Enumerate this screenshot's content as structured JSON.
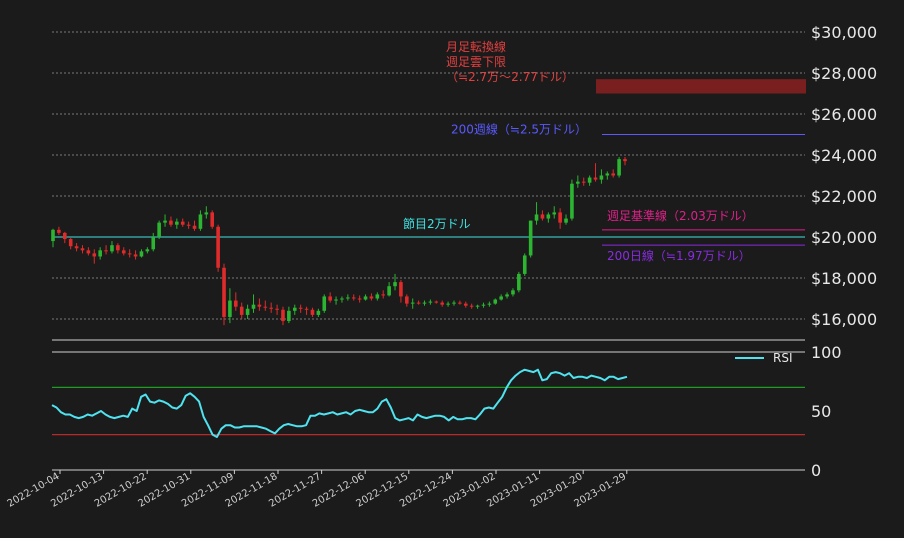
{
  "chart_data": [
    {
      "type": "candlestick",
      "title": "",
      "y_axis_side": "right",
      "ylim": [
        15000,
        30000
      ],
      "yticks": [
        16000,
        18000,
        20000,
        22000,
        24000,
        26000,
        28000,
        30000
      ],
      "ytick_labels": [
        "$16,000",
        "$18,000",
        "$20,000",
        "$22,000",
        "$24,000",
        "$26,000",
        "$28,000",
        "$30,000"
      ],
      "grid": "dotted horizontal",
      "up_color": "#2bb530",
      "down_color": "#e02b2b",
      "annotations": {
        "resistance_zone": {
          "lines": [
            "月足転換線",
            "週足雲下限",
            "（≒2.7万〜2.77ドル）"
          ],
          "from": 27000,
          "to": 27700,
          "color": "#7a1f1f",
          "text_color": "#e04040"
        },
        "ma200w": {
          "label": "200週線（≒2.5万ドル）",
          "value": 25000,
          "color": "#5a5aff"
        },
        "node": {
          "label": "節目2万ドル",
          "value": 20000,
          "color": "#40e0e0"
        },
        "weekly_base": {
          "label": "週足基準線（2.03万ドル）",
          "value": 20300,
          "color": "#e0208a"
        },
        "ma200d": {
          "label": "200日線（≒1.97万ドル）",
          "value": 19700,
          "color": "#8a2be2"
        }
      },
      "ohlc": [
        [
          19800,
          20400,
          19500,
          20350
        ],
        [
          20350,
          20500,
          20100,
          20200
        ],
        [
          20200,
          20250,
          19700,
          19900
        ],
        [
          19900,
          19950,
          19400,
          19550
        ],
        [
          19550,
          19700,
          19300,
          19450
        ],
        [
          19450,
          19600,
          19200,
          19350
        ],
        [
          19350,
          19500,
          19100,
          19200
        ],
        [
          19200,
          19400,
          18700,
          19050
        ],
        [
          19050,
          19500,
          18900,
          19350
        ],
        [
          19350,
          19600,
          19150,
          19300
        ],
        [
          19300,
          19800,
          19200,
          19600
        ],
        [
          19600,
          19700,
          19200,
          19350
        ],
        [
          19350,
          19500,
          19100,
          19200
        ],
        [
          19200,
          19400,
          19000,
          19150
        ],
        [
          19150,
          19350,
          18900,
          19050
        ],
        [
          19050,
          19400,
          19000,
          19300
        ],
        [
          19300,
          19500,
          19200,
          19400
        ],
        [
          19400,
          20200,
          19300,
          20000
        ],
        [
          20000,
          20800,
          19900,
          20700
        ],
        [
          20700,
          21100,
          20500,
          20800
        ],
        [
          20800,
          21000,
          20500,
          20600
        ],
        [
          20600,
          20900,
          20400,
          20750
        ],
        [
          20750,
          20900,
          20500,
          20600
        ],
        [
          20600,
          20750,
          20400,
          20550
        ],
        [
          20550,
          20800,
          20300,
          20400
        ],
        [
          20400,
          21300,
          20300,
          21100
        ],
        [
          21100,
          21500,
          20900,
          21200
        ],
        [
          21200,
          21300,
          20400,
          20500
        ],
        [
          20500,
          20600,
          18300,
          18500
        ],
        [
          18500,
          18700,
          15700,
          16100
        ],
        [
          16100,
          17500,
          15800,
          16900
        ],
        [
          16900,
          17300,
          16400,
          16600
        ],
        [
          16600,
          16800,
          16000,
          16200
        ],
        [
          16200,
          16700,
          16000,
          16500
        ],
        [
          16500,
          17200,
          16300,
          16700
        ],
        [
          16700,
          17000,
          16400,
          16600
        ],
        [
          16600,
          16900,
          16400,
          16550
        ],
        [
          16550,
          16800,
          16300,
          16500
        ],
        [
          16500,
          16700,
          16200,
          16450
        ],
        [
          16450,
          16600,
          15700,
          15900
        ],
        [
          15900,
          16600,
          15800,
          16400
        ],
        [
          16400,
          16700,
          16200,
          16550
        ],
        [
          16550,
          16700,
          16300,
          16500
        ],
        [
          16500,
          16600,
          16200,
          16450
        ],
        [
          16450,
          16550,
          16100,
          16200
        ],
        [
          16200,
          16500,
          16100,
          16400
        ],
        [
          16400,
          17200,
          16300,
          17100
        ],
        [
          17100,
          17300,
          16800,
          16900
        ],
        [
          16900,
          17100,
          16700,
          16950
        ],
        [
          16950,
          17100,
          16800,
          17000
        ],
        [
          17000,
          17200,
          16900,
          17050
        ],
        [
          17050,
          17200,
          16900,
          17000
        ],
        [
          17000,
          17150,
          16800,
          16950
        ],
        [
          16950,
          17200,
          16900,
          17100
        ],
        [
          17100,
          17250,
          16900,
          17000
        ],
        [
          17000,
          17300,
          16900,
          17200
        ],
        [
          17200,
          17400,
          17000,
          17150
        ],
        [
          17150,
          17800,
          17100,
          17600
        ],
        [
          17600,
          18200,
          17400,
          17800
        ],
        [
          17800,
          17900,
          16800,
          17100
        ],
        [
          17100,
          17200,
          16600,
          16750
        ],
        [
          16750,
          17000,
          16500,
          16800
        ],
        [
          16800,
          16900,
          16700,
          16750
        ],
        [
          16750,
          16900,
          16650,
          16800
        ],
        [
          16800,
          16950,
          16700,
          16850
        ],
        [
          16850,
          16900,
          16750,
          16800
        ],
        [
          16800,
          16900,
          16600,
          16700
        ],
        [
          16700,
          16850,
          16600,
          16750
        ],
        [
          16750,
          16900,
          16650,
          16800
        ],
        [
          16800,
          16900,
          16700,
          16750
        ],
        [
          16750,
          16850,
          16550,
          16650
        ],
        [
          16650,
          16750,
          16500,
          16600
        ],
        [
          16600,
          16700,
          16500,
          16650
        ],
        [
          16650,
          16800,
          16550,
          16700
        ],
        [
          16700,
          16850,
          16600,
          16750
        ],
        [
          16750,
          17000,
          16700,
          16950
        ],
        [
          16950,
          17200,
          16900,
          17100
        ],
        [
          17100,
          17300,
          17000,
          17200
        ],
        [
          17200,
          17500,
          17100,
          17400
        ],
        [
          17400,
          18300,
          17300,
          18200
        ],
        [
          18200,
          19200,
          18100,
          19100
        ],
        [
          19100,
          20800,
          19000,
          20800
        ],
        [
          20800,
          21700,
          20600,
          21100
        ],
        [
          21100,
          21300,
          20800,
          20900
        ],
        [
          20900,
          21200,
          20700,
          21100
        ],
        [
          21100,
          21500,
          20900,
          21200
        ],
        [
          21200,
          21400,
          20400,
          20700
        ],
        [
          20700,
          21100,
          20600,
          20900
        ],
        [
          20900,
          22800,
          20800,
          22600
        ],
        [
          22600,
          23000,
          22400,
          22700
        ],
        [
          22700,
          22900,
          22500,
          22650
        ],
        [
          22650,
          23000,
          22500,
          22900
        ],
        [
          22900,
          23600,
          22700,
          22800
        ],
        [
          22800,
          23300,
          22600,
          23000
        ],
        [
          23000,
          23200,
          22800,
          23100
        ],
        [
          23100,
          23300,
          22900,
          23000
        ],
        [
          23000,
          23900,
          22900,
          23800
        ],
        [
          23800,
          23900,
          23500,
          23700
        ]
      ]
    },
    {
      "type": "line",
      "ylim": [
        0,
        100
      ],
      "yticks": [
        0,
        50,
        100
      ],
      "ytick_labels": [
        "0",
        "50",
        "100"
      ],
      "legend": "RSI",
      "legend_placement": "top-right",
      "line_color": "#4fe3f0",
      "levels": [
        {
          "value": 70,
          "color": "#1d9e22"
        },
        {
          "value": 30,
          "color": "#b82929"
        }
      ],
      "series": [
        {
          "name": "RSI",
          "values": [
            55,
            53,
            49,
            47,
            47,
            45,
            44,
            45,
            47,
            46,
            48,
            50,
            47,
            45,
            44,
            45,
            46,
            45,
            52,
            50,
            62,
            64,
            58,
            57,
            59,
            58,
            56,
            53,
            52,
            55,
            63,
            65,
            62,
            58,
            45,
            38,
            30,
            28,
            35,
            38,
            38,
            36,
            36,
            37,
            37,
            37,
            37,
            36,
            35,
            33,
            31,
            35,
            38,
            39,
            38,
            37,
            37,
            38,
            46,
            46,
            48,
            47,
            48,
            49,
            47,
            48,
            49,
            47,
            50,
            51,
            50,
            49,
            49,
            52,
            58,
            60,
            53,
            44,
            42,
            43,
            44,
            42,
            47,
            45,
            44,
            45,
            46,
            46,
            45,
            42,
            45,
            43,
            43,
            44,
            44,
            43,
            47,
            52,
            53,
            52,
            57,
            62,
            70,
            76,
            80,
            83,
            85,
            84,
            83,
            85,
            76,
            77,
            82,
            83,
            82,
            80,
            82,
            78,
            79,
            79,
            78,
            80,
            79,
            78,
            76,
            79,
            79,
            77,
            78,
            79
          ]
        }
      ]
    },
    {
      "type": "date_axis",
      "x_tick_labels": [
        "2022-10-04",
        "2022-10-13",
        "2022-10-22",
        "2022-10-31",
        "2022-11-09",
        "2022-11-18",
        "2022-11-27",
        "2022-12-06",
        "2022-12-15",
        "2022-12-24",
        "2023-01-02",
        "2023-01-11",
        "2023-01-20",
        "2023-01-29"
      ],
      "xlim": [
        "2022-10-04",
        "2023-01-31"
      ]
    }
  ]
}
